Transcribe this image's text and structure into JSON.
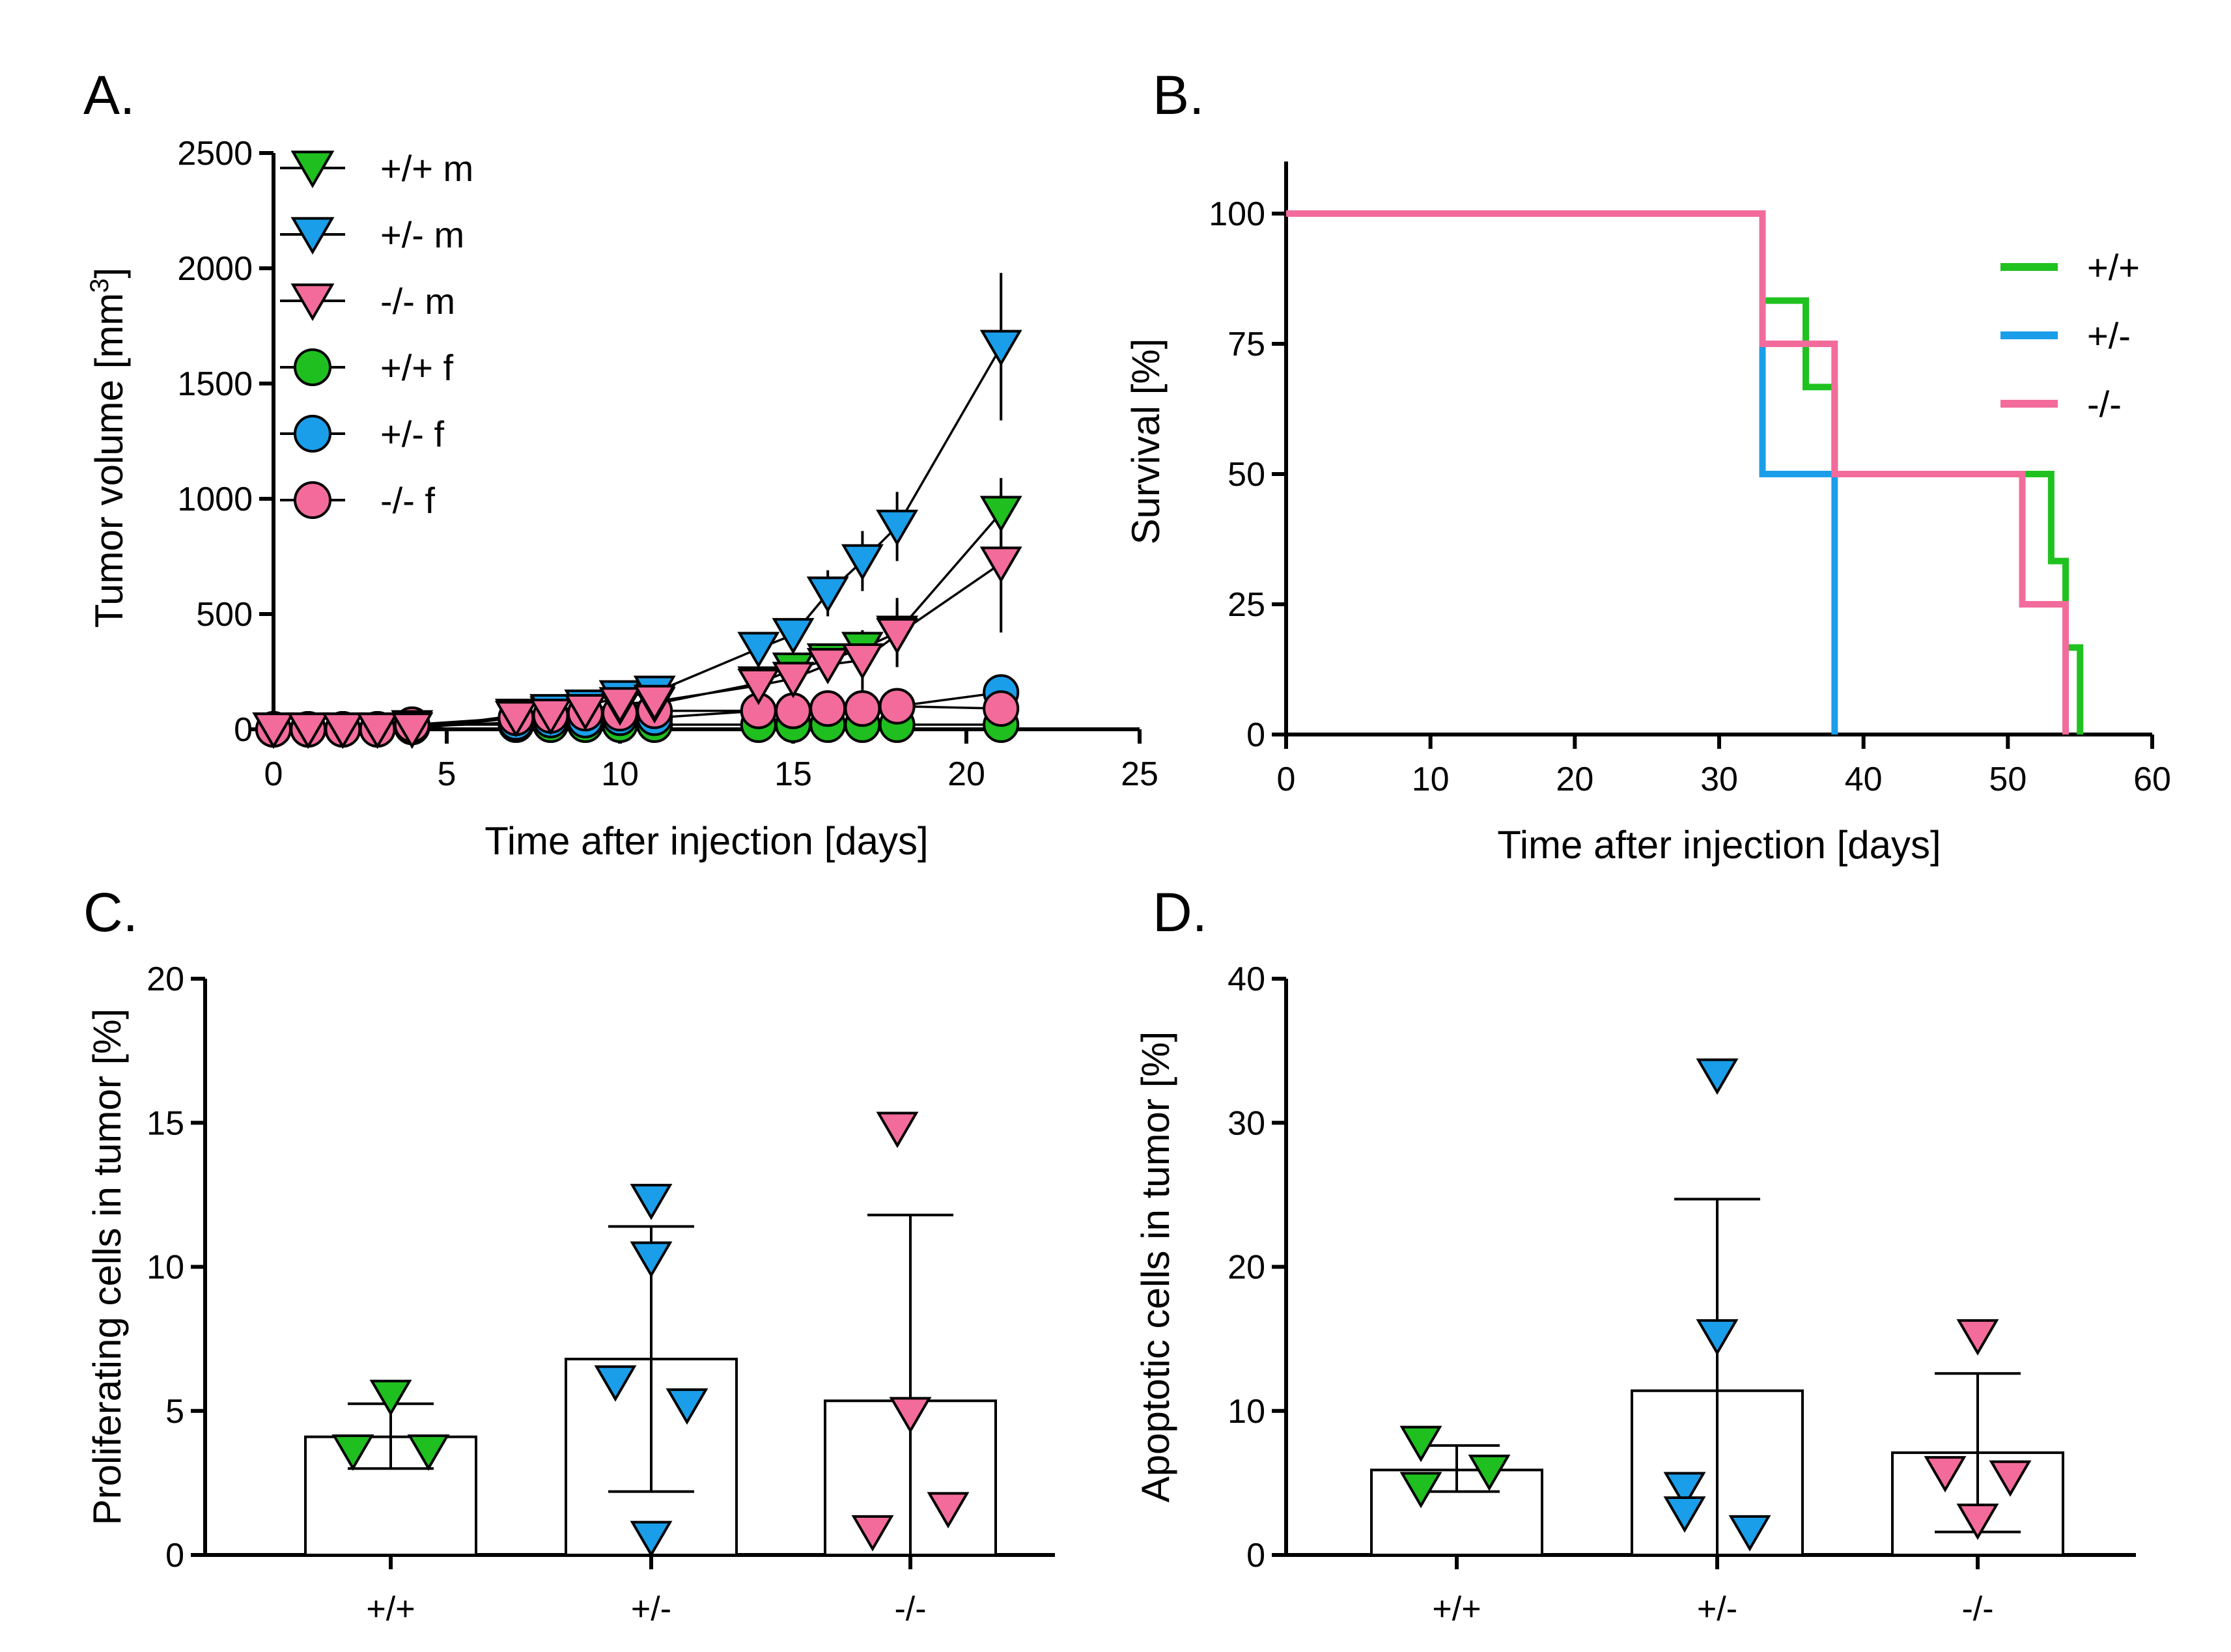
{
  "chart_data": [
    {
      "panel": "A.",
      "type": "line",
      "xlabel": "Time after injection [days]",
      "ylabel": "Tumor volume [mm",
      "ylabel_sup": "3",
      "ylabel_end": "]",
      "xlim": [
        0,
        25
      ],
      "ylim": [
        0,
        2500
      ],
      "xticks": [
        0,
        5,
        10,
        15,
        20,
        25
      ],
      "yticks": [
        0,
        500,
        1000,
        1500,
        2000,
        2500
      ],
      "legend_position": "top-left",
      "series": [
        {
          "name": "+/+ m",
          "color": "#1fbf1f",
          "marker": "triangle-down",
          "x": [
            0,
            1,
            2,
            3,
            4,
            7,
            8,
            9,
            10,
            11,
            14,
            15,
            16,
            17,
            18,
            21
          ],
          "y": [
            0,
            0,
            0,
            0,
            10,
            50,
            70,
            80,
            100,
            110,
            200,
            260,
            300,
            350,
            420,
            940
          ],
          "err": [
            0,
            0,
            0,
            0,
            0,
            0,
            0,
            0,
            0,
            0,
            0,
            0,
            0,
            0,
            150,
            150
          ]
        },
        {
          "name": "+/- m",
          "color": "#1a9eea",
          "marker": "triangle-down",
          "x": [
            0,
            1,
            2,
            3,
            4,
            7,
            8,
            9,
            10,
            11,
            14,
            15,
            16,
            17,
            18,
            21
          ],
          "y": [
            0,
            0,
            0,
            0,
            0,
            60,
            80,
            100,
            140,
            160,
            350,
            410,
            590,
            730,
            880,
            1660
          ],
          "err": [
            0,
            0,
            0,
            0,
            0,
            0,
            0,
            0,
            0,
            0,
            0,
            0,
            100,
            130,
            150,
            320
          ]
        },
        {
          "name": "-/- m",
          "color": "#f26b9b",
          "marker": "triangle-down",
          "x": [
            0,
            1,
            2,
            3,
            4,
            7,
            8,
            9,
            10,
            11,
            14,
            15,
            16,
            17,
            18,
            21
          ],
          "y": [
            0,
            0,
            0,
            0,
            0,
            50,
            60,
            80,
            110,
            120,
            190,
            220,
            280,
            300,
            410,
            720
          ],
          "err": [
            0,
            0,
            0,
            0,
            0,
            0,
            0,
            0,
            0,
            0,
            0,
            0,
            0,
            130,
            140,
            300
          ]
        },
        {
          "name": "+/+ f",
          "color": "#1fbf1f",
          "marker": "circle",
          "x": [
            0,
            1,
            2,
            3,
            4,
            7,
            8,
            9,
            10,
            11,
            14,
            15,
            16,
            17,
            18,
            21
          ],
          "y": [
            0,
            0,
            0,
            0,
            20,
            20,
            20,
            20,
            20,
            20,
            20,
            20,
            20,
            20,
            20,
            20
          ],
          "err": []
        },
        {
          "name": "+/- f",
          "color": "#1a9eea",
          "marker": "circle",
          "x": [
            0,
            1,
            2,
            3,
            4,
            7,
            8,
            9,
            10,
            11,
            14,
            15,
            16,
            17,
            18,
            21
          ],
          "y": [
            0,
            0,
            0,
            0,
            10,
            30,
            40,
            40,
            50,
            50,
            80,
            80,
            90,
            90,
            100,
            160
          ],
          "err": []
        },
        {
          "name": "-/- f",
          "color": "#f26b9b",
          "marker": "circle",
          "x": [
            0,
            1,
            2,
            3,
            4,
            7,
            8,
            9,
            10,
            11,
            14,
            15,
            16,
            17,
            18,
            21
          ],
          "y": [
            0,
            0,
            0,
            0,
            20,
            50,
            60,
            70,
            70,
            80,
            80,
            80,
            90,
            90,
            100,
            90
          ],
          "err": []
        }
      ]
    },
    {
      "panel": "B.",
      "type": "line",
      "subtype": "step",
      "xlabel": "Time after injection [days]",
      "ylabel": "Survival [%]",
      "xlim": [
        0,
        60
      ],
      "ylim": [
        0,
        110
      ],
      "xticks": [
        0,
        10,
        20,
        30,
        40,
        50,
        60
      ],
      "yticks": [
        0,
        25,
        50,
        75,
        100
      ],
      "legend_position": "top-right",
      "series": [
        {
          "name": "+/+",
          "color": "#1fc21f",
          "x": [
            0,
            33,
            33,
            36,
            36,
            38,
            38,
            53,
            53,
            54,
            54,
            55,
            55
          ],
          "y": [
            100,
            100,
            83.3,
            83.3,
            66.7,
            66.7,
            50,
            50,
            33.3,
            33.3,
            16.7,
            16.7,
            0
          ]
        },
        {
          "name": "+/-",
          "color": "#1a9eea",
          "x": [
            0,
            33,
            33,
            38,
            38
          ],
          "y": [
            100,
            100,
            50,
            50,
            0
          ]
        },
        {
          "name": "-/-",
          "color": "#f26b9b",
          "x": [
            0,
            33,
            33,
            38,
            38,
            51,
            51,
            54,
            54
          ],
          "y": [
            100,
            100,
            75,
            75,
            50,
            50,
            25,
            25,
            0
          ]
        }
      ]
    },
    {
      "panel": "C.",
      "type": "bar",
      "ylabel": "Proliferating cells in tumor [%]",
      "xlabel": "",
      "ylim": [
        0,
        20
      ],
      "yticks": [
        0,
        5,
        10,
        15,
        20
      ],
      "categories": [
        "+/+",
        "+/-",
        "-/-"
      ],
      "means": [
        4.1,
        6.8,
        5.35
      ],
      "err_low": [
        3.0,
        2.2,
        0
      ],
      "err_high": [
        5.25,
        11.4,
        11.8
      ],
      "points": [
        [
          5.5,
          3.6,
          3.6
        ],
        [
          12.3,
          10.3,
          6.0,
          5.2,
          0.6
        ],
        [
          14.8,
          4.9,
          0.8,
          1.6
        ]
      ],
      "colors": [
        "#1fbf1f",
        "#1a9eea",
        "#f26b9b"
      ]
    },
    {
      "panel": "D.",
      "type": "bar",
      "ylabel": "Apoptotic cells in tumor [%]",
      "xlabel": "",
      "ylim": [
        0,
        40
      ],
      "yticks": [
        0,
        10,
        20,
        30,
        40
      ],
      "categories": [
        "+/+",
        "+/-",
        "-/-"
      ],
      "means": [
        5.9,
        11.4,
        7.1
      ],
      "err_low": [
        4.4,
        0,
        1.6
      ],
      "err_high": [
        7.6,
        24.7,
        12.6
      ],
      "points": [
        [
          7.8,
          4.6,
          5.8
        ],
        [
          33.3,
          15.2,
          4.6,
          1.6,
          2.9
        ],
        [
          15.2,
          5.7,
          5.4,
          2.4
        ]
      ],
      "colors": [
        "#1fbf1f",
        "#1a9eea",
        "#f26b9b"
      ]
    }
  ]
}
